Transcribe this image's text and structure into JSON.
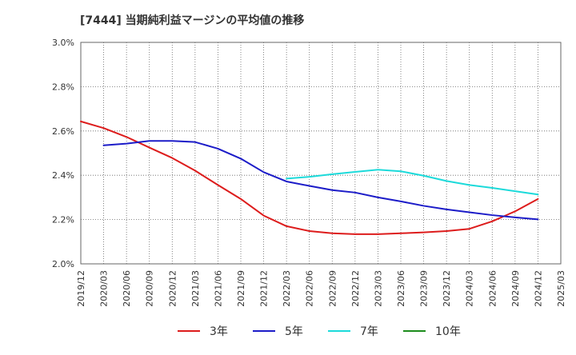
{
  "chart_data": {
    "type": "line",
    "title": "[7444]  当期純利益マージンの平均値の推移",
    "x_ticks": [
      "2019/12",
      "2020/03",
      "2020/06",
      "2020/09",
      "2020/12",
      "2021/03",
      "2021/06",
      "2021/09",
      "2021/12",
      "2022/03",
      "2022/06",
      "2022/09",
      "2022/12",
      "2023/03",
      "2023/06",
      "2023/09",
      "2023/12",
      "2024/03",
      "2024/06",
      "2024/09",
      "2024/12",
      "2025/03"
    ],
    "y_ticks": [
      "3.0%",
      "2.8%",
      "2.6%",
      "2.4%",
      "2.2%",
      "2.0%"
    ],
    "ylim": [
      2.0,
      3.0
    ],
    "grid": true,
    "legend_position": "bottom",
    "series": [
      {
        "name": "3年",
        "color": "#dd1c1c",
        "x": [
          "2019/12",
          "2020/03",
          "2020/06",
          "2020/09",
          "2020/12",
          "2021/03",
          "2021/06",
          "2021/09",
          "2021/12",
          "2022/03",
          "2022/06",
          "2022/09",
          "2022/12",
          "2023/03",
          "2023/06",
          "2023/09",
          "2023/12",
          "2024/03",
          "2024/06",
          "2024/09",
          "2024/12"
        ],
        "values": [
          2.643,
          2.613,
          2.573,
          2.525,
          2.478,
          2.421,
          2.356,
          2.293,
          2.218,
          2.17,
          2.148,
          2.138,
          2.134,
          2.134,
          2.138,
          2.142,
          2.148,
          2.158,
          2.192,
          2.237,
          2.293
        ]
      },
      {
        "name": "5年",
        "color": "#1c1cc8",
        "x": [
          "2020/03",
          "2020/06",
          "2020/09",
          "2020/12",
          "2021/03",
          "2021/06",
          "2021/09",
          "2021/12",
          "2022/03",
          "2022/06",
          "2022/09",
          "2022/12",
          "2023/03",
          "2023/06",
          "2023/09",
          "2023/12",
          "2024/03",
          "2024/06",
          "2024/09",
          "2024/12"
        ],
        "values": [
          2.535,
          2.543,
          2.555,
          2.555,
          2.55,
          2.52,
          2.475,
          2.414,
          2.372,
          2.352,
          2.333,
          2.322,
          2.3,
          2.282,
          2.262,
          2.246,
          2.233,
          2.22,
          2.21,
          2.201
        ]
      },
      {
        "name": "7年",
        "color": "#1cdada",
        "x": [
          "2022/03",
          "2022/06",
          "2022/09",
          "2022/12",
          "2023/03",
          "2023/06",
          "2023/09",
          "2023/12",
          "2024/03",
          "2024/06",
          "2024/09",
          "2024/12"
        ],
        "values": [
          2.385,
          2.393,
          2.405,
          2.415,
          2.425,
          2.418,
          2.398,
          2.374,
          2.356,
          2.343,
          2.328,
          2.313
        ]
      },
      {
        "name": "10年",
        "color": "#1c8c1c",
        "x": [],
        "values": []
      }
    ]
  }
}
